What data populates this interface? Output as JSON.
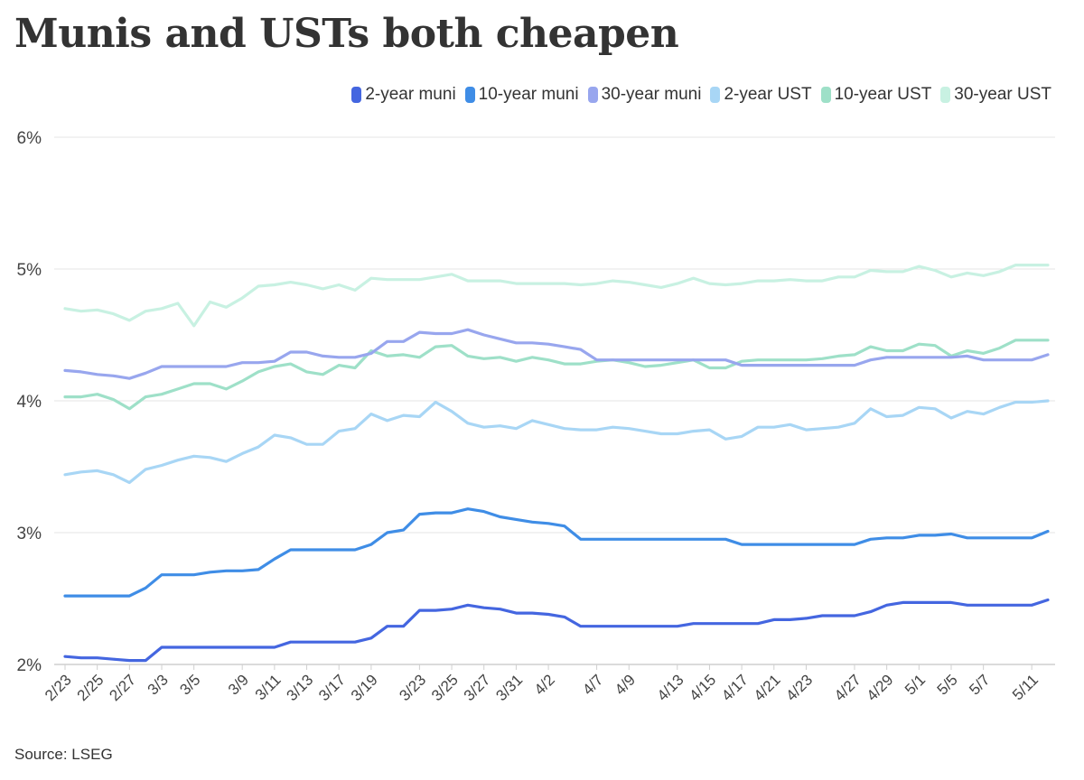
{
  "title": "Munis and USTs both cheapen",
  "source": "Source: LSEG",
  "chart_data": {
    "type": "line",
    "title": "Munis and USTs both cheapen",
    "xlabel": "",
    "ylabel": "",
    "ylim": [
      2,
      6
    ],
    "yticks": [
      "2%",
      "3%",
      "4%",
      "5%",
      "6%"
    ],
    "grid": true,
    "legend_position": "top-right",
    "x_tick_labels": [
      "2/23",
      "2/25",
      "2/27",
      "3/3",
      "3/5",
      "3/9",
      "3/11",
      "3/13",
      "3/17",
      "3/19",
      "3/23",
      "3/25",
      "3/27",
      "3/31",
      "4/2",
      "4/7",
      "4/9",
      "4/13",
      "4/15",
      "4/17",
      "4/21",
      "4/23",
      "4/27",
      "4/29",
      "5/1",
      "5/5",
      "5/7",
      "5/11"
    ],
    "x": [
      "2/23",
      "2/24",
      "2/25",
      "2/26",
      "2/27",
      "2/28",
      "3/3",
      "3/4",
      "3/5",
      "3/6",
      "3/7",
      "3/9",
      "3/10",
      "3/11",
      "3/12",
      "3/13",
      "3/14",
      "3/17",
      "3/18",
      "3/19",
      "3/20",
      "3/21",
      "3/23",
      "3/24",
      "3/25",
      "3/26",
      "3/27",
      "3/28",
      "3/31",
      "4/1",
      "4/2",
      "4/3",
      "4/4",
      "4/7",
      "4/8",
      "4/9",
      "4/10",
      "4/11",
      "4/13",
      "4/14",
      "4/15",
      "4/16",
      "4/17",
      "4/18",
      "4/21",
      "4/22",
      "4/23",
      "4/24",
      "4/25",
      "4/27",
      "4/28",
      "4/29",
      "4/30",
      "5/1",
      "5/2",
      "5/5",
      "5/6",
      "5/7",
      "5/8",
      "5/9",
      "5/11",
      "5/12"
    ],
    "series": [
      {
        "name": "2-year muni",
        "color": "#4466e0",
        "values": [
          2.06,
          2.05,
          2.05,
          2.04,
          2.03,
          2.03,
          2.13,
          2.13,
          2.13,
          2.13,
          2.13,
          2.13,
          2.13,
          2.13,
          2.17,
          2.17,
          2.17,
          2.17,
          2.17,
          2.2,
          2.29,
          2.29,
          2.41,
          2.41,
          2.42,
          2.45,
          2.43,
          2.42,
          2.39,
          2.39,
          2.38,
          2.36,
          2.29,
          2.29,
          2.29,
          2.29,
          2.29,
          2.29,
          2.29,
          2.31,
          2.31,
          2.31,
          2.31,
          2.31,
          2.34,
          2.34,
          2.35,
          2.37,
          2.37,
          2.37,
          2.4,
          2.45,
          2.47,
          2.47,
          2.47,
          2.47,
          2.45,
          2.45,
          2.45,
          2.45,
          2.45,
          2.49
        ]
      },
      {
        "name": "10-year muni",
        "color": "#3f8de6",
        "values": [
          2.52,
          2.52,
          2.52,
          2.52,
          2.52,
          2.58,
          2.68,
          2.68,
          2.68,
          2.7,
          2.71,
          2.71,
          2.72,
          2.8,
          2.87,
          2.87,
          2.87,
          2.87,
          2.87,
          2.91,
          3.0,
          3.02,
          3.14,
          3.15,
          3.15,
          3.18,
          3.16,
          3.12,
          3.1,
          3.08,
          3.07,
          3.05,
          2.95,
          2.95,
          2.95,
          2.95,
          2.95,
          2.95,
          2.95,
          2.95,
          2.95,
          2.95,
          2.91,
          2.91,
          2.91,
          2.91,
          2.91,
          2.91,
          2.91,
          2.91,
          2.95,
          2.96,
          2.96,
          2.98,
          2.98,
          2.99,
          2.96,
          2.96,
          2.96,
          2.96,
          2.96,
          3.01
        ]
      },
      {
        "name": "30-year muni",
        "color": "#98a6ee",
        "values": [
          4.23,
          4.22,
          4.2,
          4.19,
          4.17,
          4.21,
          4.26,
          4.26,
          4.26,
          4.26,
          4.26,
          4.29,
          4.29,
          4.3,
          4.37,
          4.37,
          4.34,
          4.33,
          4.33,
          4.36,
          4.45,
          4.45,
          4.52,
          4.51,
          4.51,
          4.54,
          4.5,
          4.47,
          4.44,
          4.44,
          4.43,
          4.41,
          4.39,
          4.31,
          4.31,
          4.31,
          4.31,
          4.31,
          4.31,
          4.31,
          4.31,
          4.31,
          4.27,
          4.27,
          4.27,
          4.27,
          4.27,
          4.27,
          4.27,
          4.27,
          4.31,
          4.33,
          4.33,
          4.33,
          4.33,
          4.33,
          4.34,
          4.31,
          4.31,
          4.31,
          4.31,
          4.35
        ]
      },
      {
        "name": "2-year UST",
        "color": "#a8d6f5",
        "values": [
          3.44,
          3.46,
          3.47,
          3.44,
          3.38,
          3.48,
          3.51,
          3.55,
          3.58,
          3.57,
          3.54,
          3.6,
          3.65,
          3.74,
          3.72,
          3.67,
          3.67,
          3.77,
          3.79,
          3.9,
          3.85,
          3.89,
          3.88,
          3.99,
          3.92,
          3.83,
          3.8,
          3.81,
          3.79,
          3.85,
          3.82,
          3.79,
          3.78,
          3.78,
          3.8,
          3.79,
          3.77,
          3.75,
          3.75,
          3.77,
          3.78,
          3.71,
          3.73,
          3.8,
          3.8,
          3.82,
          3.78,
          3.79,
          3.8,
          3.83,
          3.94,
          3.88,
          3.89,
          3.95,
          3.94,
          3.87,
          3.92,
          3.9,
          3.95,
          3.99,
          3.99,
          4.0
        ]
      },
      {
        "name": "10-year UST",
        "color": "#9ee0c8",
        "values": [
          4.03,
          4.03,
          4.05,
          4.01,
          3.94,
          4.03,
          4.05,
          4.09,
          4.13,
          4.13,
          4.09,
          4.15,
          4.22,
          4.26,
          4.28,
          4.22,
          4.2,
          4.27,
          4.25,
          4.38,
          4.34,
          4.35,
          4.33,
          4.41,
          4.42,
          4.34,
          4.32,
          4.33,
          4.3,
          4.33,
          4.31,
          4.28,
          4.28,
          4.3,
          4.31,
          4.29,
          4.26,
          4.27,
          4.29,
          4.31,
          4.25,
          4.25,
          4.3,
          4.31,
          4.31,
          4.31,
          4.31,
          4.32,
          4.34,
          4.35,
          4.41,
          4.38,
          4.38,
          4.43,
          4.42,
          4.34,
          4.38,
          4.36,
          4.4,
          4.46,
          4.46,
          4.46
        ]
      },
      {
        "name": "30-year UST",
        "color": "#c8f1e2",
        "values": [
          4.7,
          4.68,
          4.69,
          4.66,
          4.61,
          4.68,
          4.7,
          4.74,
          4.57,
          4.75,
          4.71,
          4.78,
          4.87,
          4.88,
          4.9,
          4.88,
          4.85,
          4.88,
          4.84,
          4.93,
          4.92,
          4.92,
          4.92,
          4.94,
          4.96,
          4.91,
          4.91,
          4.91,
          4.89,
          4.89,
          4.89,
          4.89,
          4.88,
          4.89,
          4.91,
          4.9,
          4.88,
          4.86,
          4.89,
          4.93,
          4.89,
          4.88,
          4.89,
          4.91,
          4.91,
          4.92,
          4.91,
          4.91,
          4.94,
          4.94,
          4.99,
          4.98,
          4.98,
          5.02,
          4.99,
          4.94,
          4.97,
          4.95,
          4.98,
          5.03,
          5.03,
          5.03
        ]
      }
    ]
  }
}
